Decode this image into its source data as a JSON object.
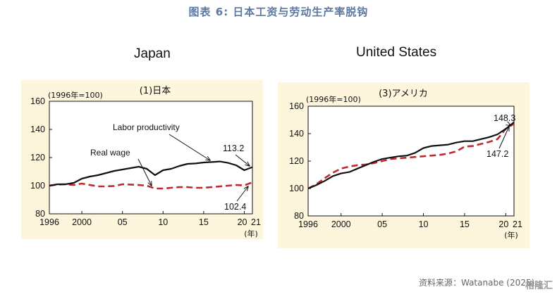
{
  "figure_title": "图表 6:  日本工资与劳动生产率脱钩",
  "source": "资料来源：Watanabe (2025),",
  "watermark": "格隆汇",
  "colors": {
    "productivity": "#111111",
    "wage": "#c0282b",
    "panel_bg": "#fdf6dc",
    "title": "#5b78a3"
  },
  "chart_data": [
    {
      "type": "line",
      "country_label": "Japan",
      "title": "(1)日本",
      "unit_label": "(1996年=100)",
      "year_unit": "(年)",
      "xlim": [
        1996,
        2021
      ],
      "ylim": [
        80,
        160
      ],
      "yticks": [
        80,
        100,
        120,
        140,
        160
      ],
      "xtick_labels": [
        "1996",
        "2000",
        "05",
        "10",
        "15",
        "20",
        "21"
      ],
      "xtick_values": [
        1996,
        2000,
        2005,
        2010,
        2015,
        2020,
        2021
      ],
      "annotations": [
        {
          "text": "Labor productivity"
        },
        {
          "text": "Real wage"
        },
        {
          "text": "113.2"
        },
        {
          "text": "102.4"
        }
      ],
      "series": [
        {
          "name": "Labor productivity",
          "style": "solid",
          "x": [
            1996,
            1997,
            1998,
            1999,
            2000,
            2001,
            2002,
            2003,
            2004,
            2005,
            2006,
            2007,
            2008,
            2009,
            2010,
            2011,
            2012,
            2013,
            2014,
            2015,
            2016,
            2017,
            2018,
            2019,
            2020,
            2021
          ],
          "y": [
            100,
            101,
            101,
            102,
            105,
            106.5,
            107.5,
            109,
            110.5,
            111.5,
            112.5,
            113.5,
            112,
            107.5,
            111,
            112,
            114,
            115.5,
            115.8,
            116.5,
            116.8,
            117.2,
            116.2,
            114.5,
            111,
            113.2
          ]
        },
        {
          "name": "Real wage",
          "style": "dashed",
          "x": [
            1996,
            1997,
            1998,
            1999,
            2000,
            2001,
            2002,
            2003,
            2004,
            2005,
            2006,
            2007,
            2008,
            2009,
            2010,
            2011,
            2012,
            2013,
            2014,
            2015,
            2016,
            2017,
            2018,
            2019,
            2020,
            2021
          ],
          "y": [
            100,
            100.8,
            101,
            100.5,
            101.5,
            100.5,
            99.5,
            99.5,
            99.8,
            101,
            100.8,
            100.5,
            100,
            98,
            98,
            98.5,
            99,
            99,
            98.5,
            98.5,
            99,
            99.5,
            100,
            100.5,
            100.2,
            102.4
          ]
        }
      ]
    },
    {
      "type": "line",
      "country_label": "United States",
      "title": "(3)アメリカ",
      "unit_label": "(1996年=100)",
      "year_unit": "(年)",
      "xlim": [
        1996,
        2021
      ],
      "ylim": [
        80,
        160
      ],
      "yticks": [
        80,
        100,
        120,
        140,
        160
      ],
      "xtick_labels": [
        "1996",
        "2000",
        "05",
        "10",
        "15",
        "20",
        "21"
      ],
      "xtick_values": [
        1996,
        2000,
        2005,
        2010,
        2015,
        2020,
        2021
      ],
      "annotations": [
        {
          "text": "148.3"
        },
        {
          "text": "147.2"
        }
      ],
      "series": [
        {
          "name": "Labor productivity",
          "style": "solid",
          "x": [
            1996,
            1997,
            1998,
            1999,
            2000,
            2001,
            2002,
            2003,
            2004,
            2005,
            2006,
            2007,
            2008,
            2009,
            2010,
            2011,
            2012,
            2013,
            2014,
            2015,
            2016,
            2017,
            2018,
            2019,
            2020,
            2021
          ],
          "y": [
            100,
            102.5,
            105.5,
            109,
            111,
            112,
            114.5,
            117,
            119.5,
            121.5,
            122.5,
            123.5,
            124,
            126,
            129.5,
            131,
            131.5,
            132,
            133.5,
            134.5,
            134.5,
            136,
            137.5,
            139.5,
            143.5,
            148.3
          ]
        },
        {
          "name": "Real wage",
          "style": "dashed",
          "x": [
            1996,
            1997,
            1998,
            1999,
            2000,
            2001,
            2002,
            2003,
            2004,
            2005,
            2006,
            2007,
            2008,
            2009,
            2010,
            2011,
            2012,
            2013,
            2014,
            2015,
            2016,
            2017,
            2018,
            2019,
            2020,
            2021
          ],
          "y": [
            100,
            103,
            107.5,
            111.5,
            114.5,
            116,
            117,
            117.5,
            118.5,
            120,
            121.5,
            122,
            122.5,
            123,
            123.5,
            124,
            124.5,
            125.5,
            127,
            130.5,
            131,
            132.5,
            134,
            136,
            143.5,
            147.2
          ]
        }
      ]
    }
  ]
}
